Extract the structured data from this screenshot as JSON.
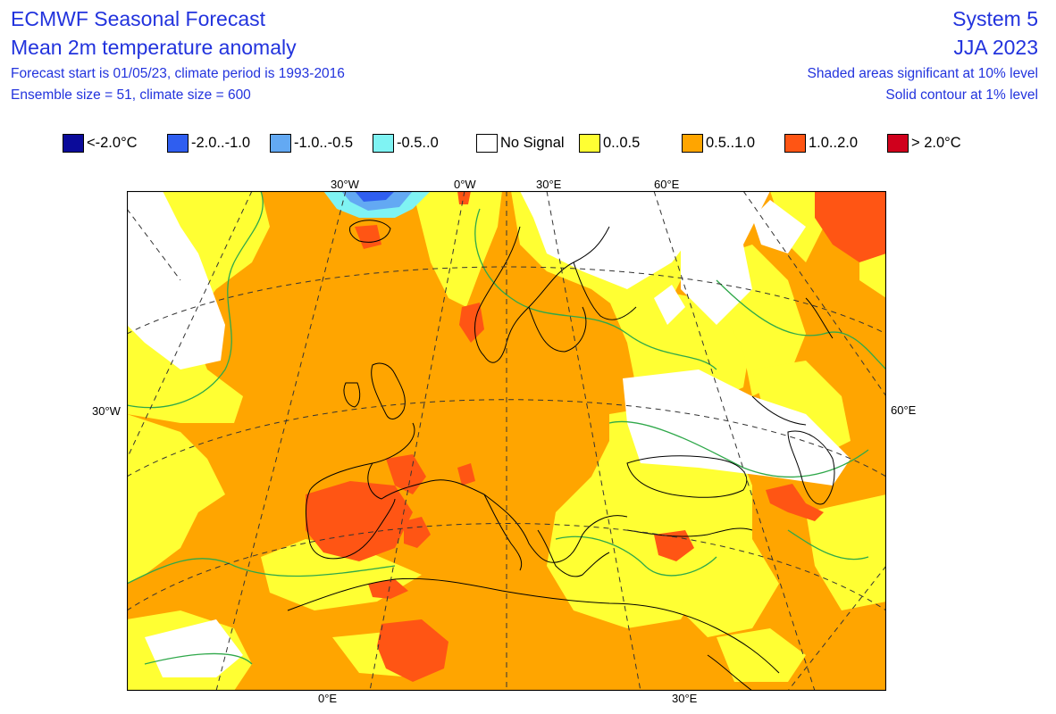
{
  "header": {
    "title": "ECMWF Seasonal Forecast",
    "subtitle": "Mean 2m temperature anomaly",
    "line3": "Forecast start is 01/05/23, climate period is 1993-2016",
    "line4": "Ensemble size = 51, climate size = 600",
    "system": "System 5",
    "season": "JJA 2023",
    "sig_line1": "Shaded areas significant at 10% level",
    "sig_line2": "Solid contour at 1% level"
  },
  "legend": [
    {
      "label": "<-2.0°C",
      "color": "#0b0b9a"
    },
    {
      "label": "-2.0..-1.0",
      "color": "#2f5ef0"
    },
    {
      "label": "-1.0..-0.5",
      "color": "#63a9f3"
    },
    {
      "label": "-0.5..0",
      "color": "#7ff3f3"
    },
    {
      "label": "No Signal",
      "color": "#ffffff"
    },
    {
      "label": "0..0.5",
      "color": "#ffff33"
    },
    {
      "label": "0.5..1.0",
      "color": "#ffa500"
    },
    {
      "label": "1.0..2.0",
      "color": "#ff5514"
    },
    {
      "label": "> 2.0°C",
      "color": "#d0001c"
    }
  ],
  "axis_labels": {
    "top": [
      "30°W",
      "0°W",
      "30°E",
      "60°E"
    ],
    "left": "30°W",
    "right": "60°E",
    "bottom": [
      "0°E",
      "30°E"
    ]
  },
  "colors": {
    "title_text": "#2233dd",
    "significance_contour": "#2fa84a",
    "coastline": "#000000",
    "graticule": "#333333"
  }
}
